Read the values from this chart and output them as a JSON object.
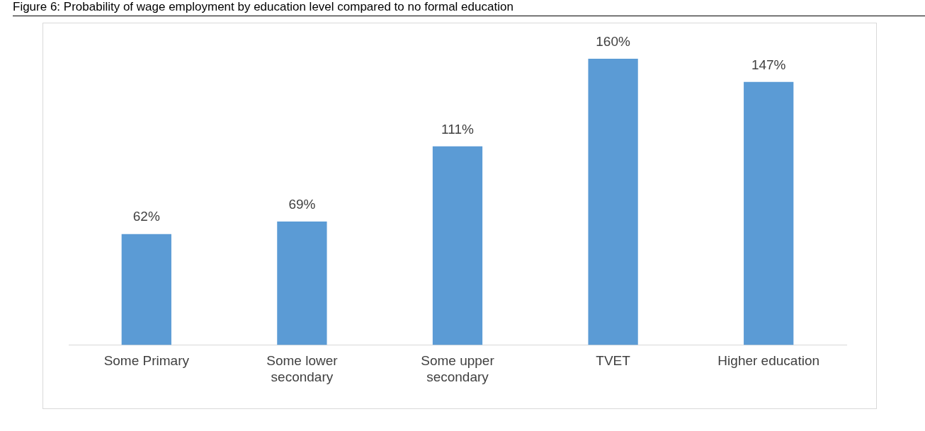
{
  "chart_data": {
    "type": "bar",
    "title": "Figure 6: Probability of wage employment by education level compared to no formal education",
    "categories": [
      "Some Primary",
      "Some lower secondary",
      "Some upper secondary",
      "TVET",
      "Higher education"
    ],
    "values": [
      62,
      69,
      111,
      160,
      147
    ],
    "value_labels": [
      "62%",
      "69%",
      "111%",
      "160%",
      "147%"
    ],
    "color": "#5b9bd5",
    "relative": false,
    "grid": false,
    "legend": false
  }
}
